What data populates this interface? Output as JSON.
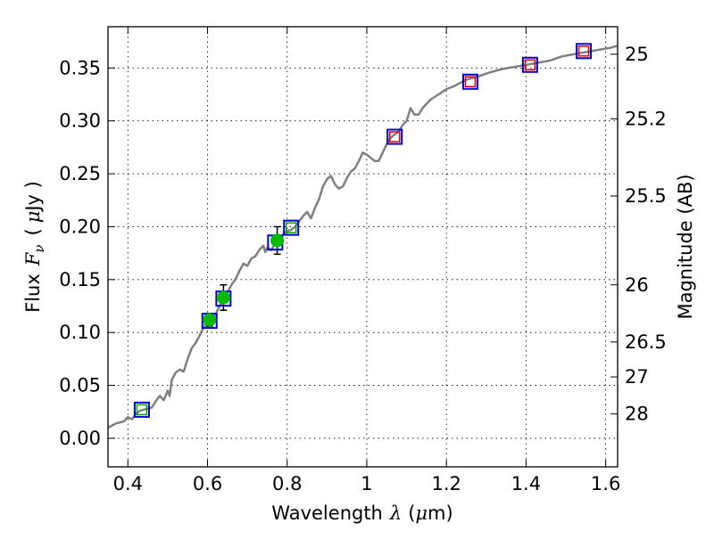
{
  "chart_data": {
    "type": "scatter",
    "xlabel": "Wavelength",
    "xlabel_symbol": "λ",
    "xlabel_unit_open": "(",
    "xlabel_unit_mu": "μ",
    "xlabel_unit_rest": "m)",
    "ylabel_text": "Flux",
    "ylabel_symbol": "F",
    "ylabel_subscript": "ν",
    "ylabel_unit_open": "(",
    "ylabel_unit_mu": "μ",
    "ylabel_unit_rest": "Jy )",
    "y2label": "Magnitude (AB)",
    "xlim": [
      0.35,
      1.63
    ],
    "ylim": [
      -0.027,
      0.389
    ],
    "grid": true,
    "xticks": [
      0.4,
      0.6,
      0.8,
      1.0,
      1.2,
      1.4,
      1.6
    ],
    "xtick_labels": [
      "0.4",
      "0.6",
      "0.8",
      "1",
      "1.2",
      "1.4",
      "1.6"
    ],
    "yticks": [
      0.0,
      0.05,
      0.1,
      0.15,
      0.2,
      0.25,
      0.3,
      0.35
    ],
    "ytick_labels": [
      "0.00",
      "0.05",
      "0.10",
      "0.15",
      "0.20",
      "0.25",
      "0.30",
      "0.35"
    ],
    "y2ticks": [
      {
        "label": "25",
        "flux": 0.363
      },
      {
        "label": "25.2",
        "flux": 0.302
      },
      {
        "label": "25.5",
        "flux": 0.229
      },
      {
        "label": "26",
        "flux": 0.145
      },
      {
        "label": "26.5",
        "flux": 0.091
      },
      {
        "label": "27",
        "flux": 0.058
      },
      {
        "label": "28",
        "flux": 0.023
      }
    ],
    "model_sed": {
      "color": "#808080",
      "points": [
        [
          0.35,
          0.01
        ],
        [
          0.37,
          0.014
        ],
        [
          0.39,
          0.016
        ],
        [
          0.4,
          0.02
        ],
        [
          0.41,
          0.018
        ],
        [
          0.42,
          0.023
        ],
        [
          0.43,
          0.026
        ],
        [
          0.45,
          0.028
        ],
        [
          0.46,
          0.029
        ],
        [
          0.47,
          0.035
        ],
        [
          0.48,
          0.04
        ],
        [
          0.49,
          0.036
        ],
        [
          0.5,
          0.045
        ],
        [
          0.505,
          0.04
        ],
        [
          0.51,
          0.055
        ],
        [
          0.52,
          0.062
        ],
        [
          0.53,
          0.065
        ],
        [
          0.54,
          0.063
        ],
        [
          0.55,
          0.075
        ],
        [
          0.56,
          0.085
        ],
        [
          0.57,
          0.09
        ],
        [
          0.58,
          0.097
        ],
        [
          0.59,
          0.105
        ],
        [
          0.6,
          0.11
        ],
        [
          0.61,
          0.113
        ],
        [
          0.62,
          0.117
        ],
        [
          0.63,
          0.125
        ],
        [
          0.64,
          0.131
        ],
        [
          0.65,
          0.138
        ],
        [
          0.66,
          0.145
        ],
        [
          0.67,
          0.15
        ],
        [
          0.68,
          0.158
        ],
        [
          0.69,
          0.165
        ],
        [
          0.7,
          0.163
        ],
        [
          0.71,
          0.17
        ],
        [
          0.72,
          0.172
        ],
        [
          0.73,
          0.178
        ],
        [
          0.74,
          0.182
        ],
        [
          0.745,
          0.176
        ],
        [
          0.75,
          0.18
        ],
        [
          0.76,
          0.178
        ],
        [
          0.77,
          0.184
        ],
        [
          0.78,
          0.188
        ],
        [
          0.79,
          0.193
        ],
        [
          0.8,
          0.196
        ],
        [
          0.81,
          0.197
        ],
        [
          0.82,
          0.2
        ],
        [
          0.83,
          0.205
        ],
        [
          0.84,
          0.21
        ],
        [
          0.85,
          0.214
        ],
        [
          0.86,
          0.208
        ],
        [
          0.87,
          0.218
        ],
        [
          0.88,
          0.226
        ],
        [
          0.89,
          0.238
        ],
        [
          0.9,
          0.245
        ],
        [
          0.91,
          0.248
        ],
        [
          0.92,
          0.24
        ],
        [
          0.93,
          0.236
        ],
        [
          0.94,
          0.238
        ],
        [
          0.95,
          0.246
        ],
        [
          0.96,
          0.252
        ],
        [
          0.97,
          0.255
        ],
        [
          0.98,
          0.262
        ],
        [
          0.99,
          0.27
        ],
        [
          1.0,
          0.268
        ],
        [
          1.01,
          0.265
        ],
        [
          1.02,
          0.262
        ],
        [
          1.03,
          0.262
        ],
        [
          1.04,
          0.27
        ],
        [
          1.05,
          0.278
        ],
        [
          1.06,
          0.284
        ],
        [
          1.07,
          0.287
        ],
        [
          1.08,
          0.29
        ],
        [
          1.09,
          0.296
        ],
        [
          1.1,
          0.3
        ],
        [
          1.11,
          0.312
        ],
        [
          1.12,
          0.306
        ],
        [
          1.13,
          0.306
        ],
        [
          1.14,
          0.312
        ],
        [
          1.16,
          0.32
        ],
        [
          1.18,
          0.325
        ],
        [
          1.2,
          0.33
        ],
        [
          1.22,
          0.333
        ],
        [
          1.25,
          0.339
        ],
        [
          1.28,
          0.342
        ],
        [
          1.31,
          0.346
        ],
        [
          1.34,
          0.349
        ],
        [
          1.37,
          0.351
        ],
        [
          1.4,
          0.353
        ],
        [
          1.43,
          0.355
        ],
        [
          1.46,
          0.357
        ],
        [
          1.49,
          0.361
        ],
        [
          1.52,
          0.363
        ],
        [
          1.55,
          0.365
        ],
        [
          1.58,
          0.367
        ],
        [
          1.61,
          0.369
        ],
        [
          1.63,
          0.371
        ]
      ]
    },
    "observed": {
      "color": "#00bb00",
      "points": [
        {
          "x": 0.605,
          "y": 0.112,
          "yerr": 0.006
        },
        {
          "x": 0.64,
          "y": 0.133,
          "yerr": 0.012
        },
        {
          "x": 0.775,
          "y": 0.187,
          "yerr": 0.013
        }
      ]
    },
    "model_box_markers": {
      "color": "#0000cc",
      "points": [
        {
          "x": 0.435,
          "y": 0.027
        },
        {
          "x": 0.605,
          "y": 0.111
        },
        {
          "x": 0.64,
          "y": 0.132
        },
        {
          "x": 0.77,
          "y": 0.185
        },
        {
          "x": 0.81,
          "y": 0.199
        },
        {
          "x": 1.07,
          "y": 0.285
        },
        {
          "x": 1.26,
          "y": 0.337
        },
        {
          "x": 1.41,
          "y": 0.353
        },
        {
          "x": 1.545,
          "y": 0.366
        }
      ]
    },
    "red_inner_markers": {
      "color": "#dd0000",
      "points": [
        {
          "x": 1.07,
          "y": 0.285
        },
        {
          "x": 1.26,
          "y": 0.337
        },
        {
          "x": 1.41,
          "y": 0.353
        },
        {
          "x": 1.545,
          "y": 0.366
        }
      ]
    },
    "green_inner_markers": {
      "color": "#00aa00",
      "points": [
        {
          "x": 0.435,
          "y": 0.027
        },
        {
          "x": 0.81,
          "y": 0.199
        }
      ]
    }
  }
}
